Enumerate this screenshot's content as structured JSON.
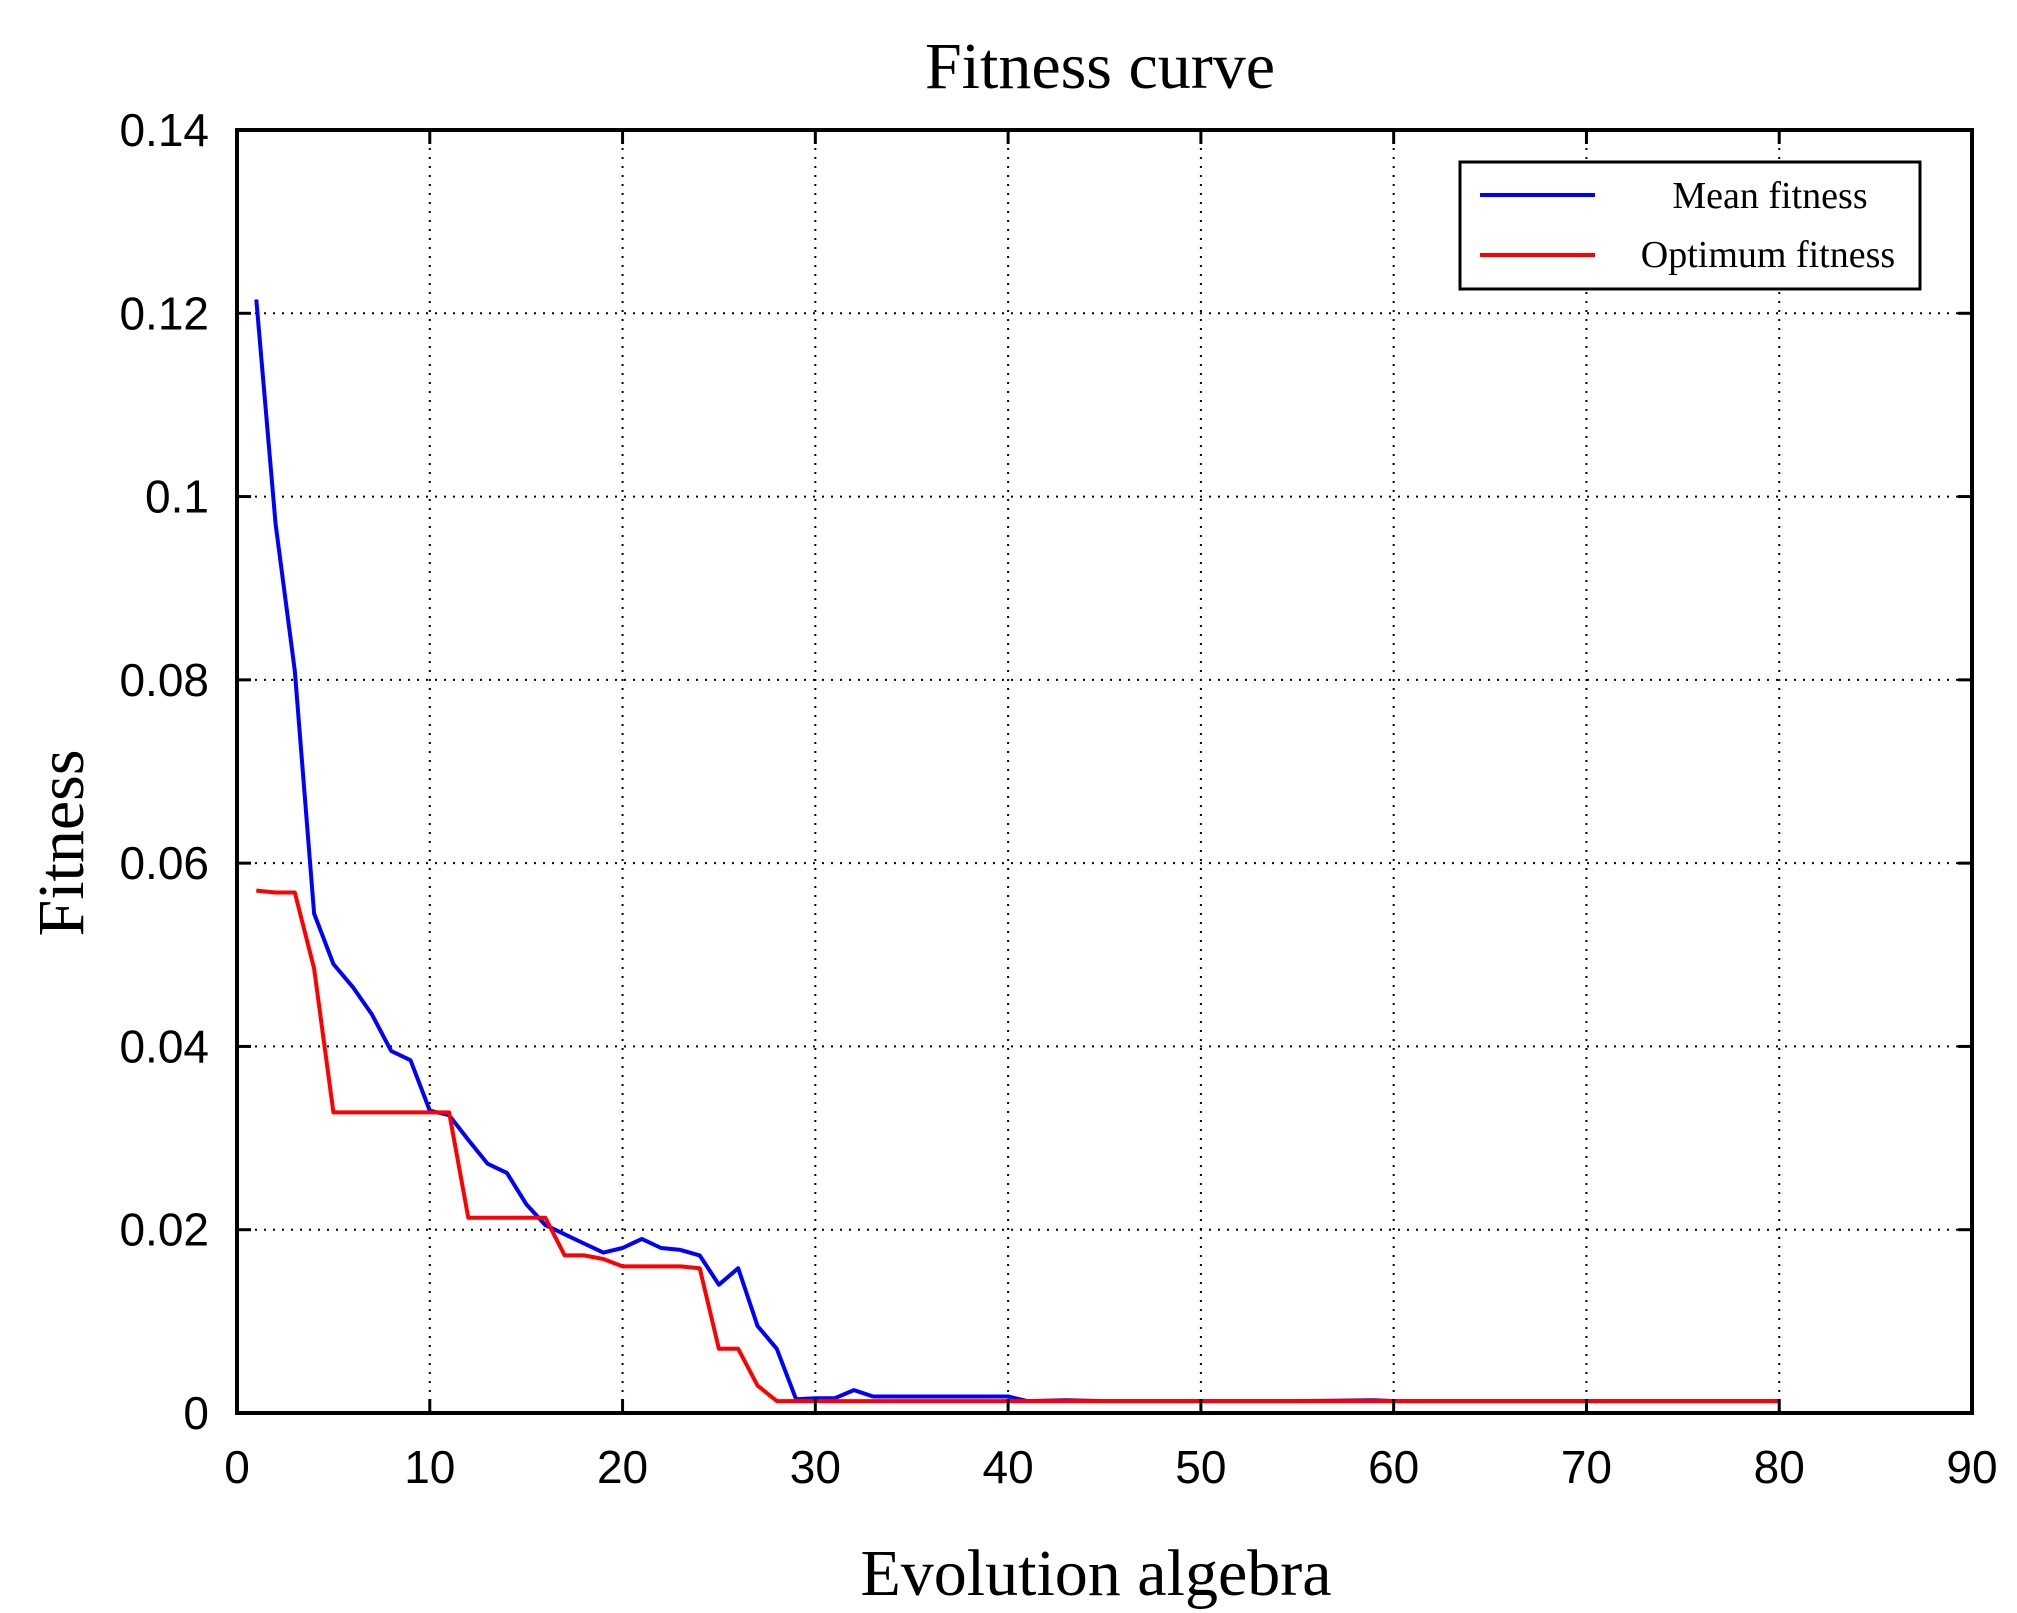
{
  "chart_data": {
    "type": "line",
    "title": "Fitness curve",
    "xlabel": "Evolution algebra",
    "ylabel": "Fitness",
    "xlim": [
      0,
      90
    ],
    "ylim": [
      0,
      0.14
    ],
    "xticks": [
      0,
      10,
      20,
      30,
      40,
      50,
      60,
      70,
      80,
      90
    ],
    "yticks": [
      0,
      0.02,
      0.04,
      0.06,
      0.08,
      0.1,
      0.12,
      0.14
    ],
    "xtick_labels": [
      "0",
      "10",
      "20",
      "30",
      "40",
      "50",
      "60",
      "70",
      "80",
      "90"
    ],
    "ytick_labels": [
      "0",
      "0.02",
      "0.04",
      "0.06",
      "0.08",
      "0.1",
      "0.12",
      "0.14"
    ],
    "grid": true,
    "legend_position": "top-right",
    "series": [
      {
        "name": "Mean fitness",
        "color": "#0000ff",
        "x": [
          1,
          2,
          3,
          4,
          5,
          6,
          7,
          8,
          9,
          10,
          11,
          12,
          13,
          14,
          15,
          16,
          17,
          18,
          19,
          20,
          21,
          22,
          23,
          24,
          25,
          26,
          27,
          28,
          29,
          30,
          31,
          32,
          33,
          35,
          40,
          41,
          43,
          45,
          50,
          55,
          59,
          60,
          65,
          70,
          75,
          80
        ],
        "y": [
          0.1215,
          0.097,
          0.081,
          0.0545,
          0.049,
          0.0465,
          0.0435,
          0.0395,
          0.0385,
          0.033,
          0.0325,
          0.0298,
          0.0272,
          0.0262,
          0.0228,
          0.0205,
          0.0195,
          0.0185,
          0.0175,
          0.018,
          0.019,
          0.018,
          0.0178,
          0.0172,
          0.014,
          0.0158,
          0.0095,
          0.007,
          0.0015,
          0.0016,
          0.0016,
          0.0025,
          0.0018,
          0.0018,
          0.0018,
          0.0013,
          0.0014,
          0.0013,
          0.0013,
          0.0013,
          0.0014,
          0.0013,
          0.0013,
          0.0013,
          0.0013,
          0.0013
        ]
      },
      {
        "name": "Optimum fitness",
        "color": "#ff0000",
        "x": [
          1,
          2,
          3,
          4,
          5,
          6,
          7,
          8,
          9,
          10,
          11,
          12,
          13,
          14,
          15,
          16,
          17,
          18,
          19,
          20,
          21,
          22,
          23,
          24,
          25,
          26,
          27,
          28,
          30,
          40,
          50,
          60,
          70,
          80
        ],
        "y": [
          0.057,
          0.0568,
          0.0568,
          0.0485,
          0.0328,
          0.0328,
          0.0328,
          0.0328,
          0.0328,
          0.0328,
          0.0328,
          0.0213,
          0.0213,
          0.0213,
          0.0213,
          0.0213,
          0.0172,
          0.0172,
          0.0168,
          0.016,
          0.016,
          0.016,
          0.016,
          0.0158,
          0.007,
          0.007,
          0.003,
          0.0013,
          0.0013,
          0.0013,
          0.0013,
          0.0013,
          0.0013,
          0.0013
        ]
      }
    ]
  }
}
